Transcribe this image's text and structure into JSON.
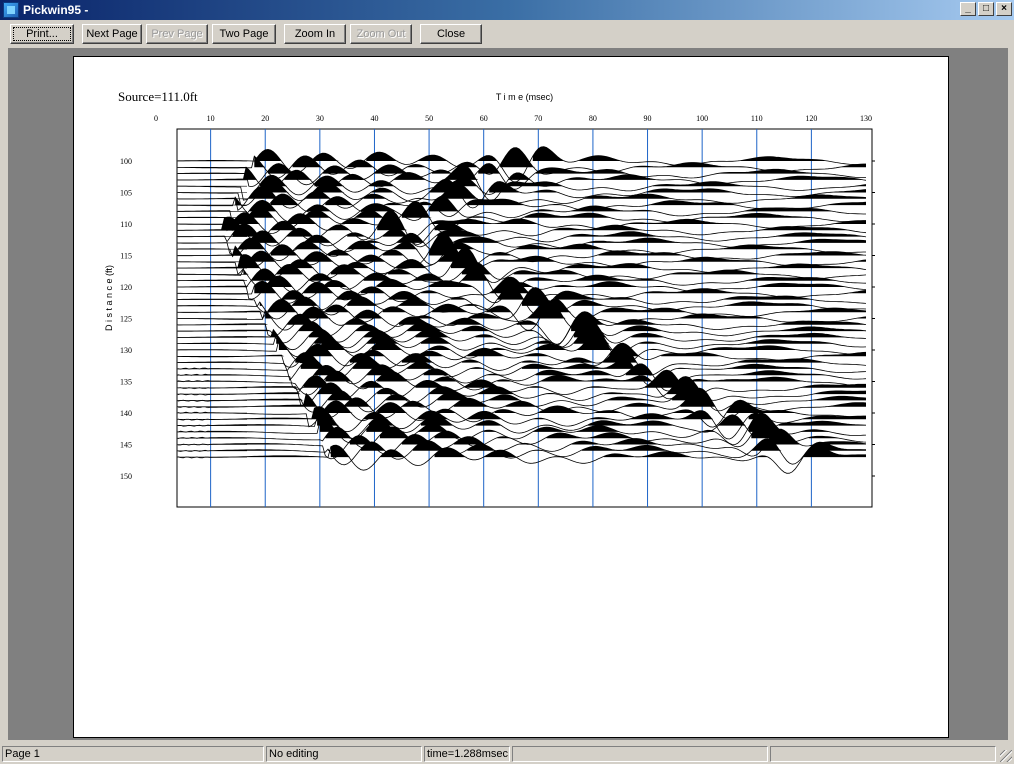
{
  "window": {
    "title": "Pickwin95 -"
  },
  "toolbar": {
    "buttons": [
      {
        "label": "Print...",
        "enabled": true
      },
      {
        "label": "Next Page",
        "enabled": true
      },
      {
        "label": "Prev Page",
        "enabled": false
      },
      {
        "label": "Two Page",
        "enabled": true
      },
      {
        "label": "Zoom In",
        "enabled": true
      },
      {
        "label": "Zoom Out",
        "enabled": false
      },
      {
        "label": "Close",
        "enabled": true
      }
    ]
  },
  "chart_data": {
    "type": "line",
    "source_label": "Source=111.0ft",
    "title": "T i m e (msec)",
    "xlabel": "T i m e (msec)",
    "ylabel": "D i s t a n c e (ft)",
    "x_ticks": [
      "0",
      "10",
      "20",
      "30",
      "40",
      "50",
      "60",
      "70",
      "80",
      "90",
      "100",
      "110",
      "120",
      "130"
    ],
    "y_ticks": [
      "100",
      "105",
      "110",
      "115",
      "120",
      "125",
      "130",
      "135",
      "140",
      "145",
      "150"
    ],
    "xlim": [
      0,
      130
    ],
    "ylim": [
      97.5,
      152.5
    ],
    "grid_x": [
      10,
      20,
      30,
      40,
      50,
      60,
      70,
      80,
      90,
      100,
      110,
      120
    ],
    "trace_distances": [
      100,
      101,
      102,
      103,
      104,
      105,
      106,
      107,
      108,
      109,
      110,
      111,
      112,
      113,
      114,
      115,
      116,
      117,
      118,
      119,
      120,
      121,
      122,
      123,
      124,
      125,
      126,
      127,
      128,
      129,
      130,
      131,
      132,
      133,
      134,
      135,
      136,
      137,
      138,
      139,
      140,
      141,
      142,
      143,
      144,
      145,
      146,
      147
    ],
    "fill": "positive (black)",
    "grid_color": "#1e64c8"
  },
  "status": {
    "page": "Page 1",
    "mode": "No editing",
    "time": "time=1.288msec",
    "extra1": "",
    "extra2": ""
  }
}
